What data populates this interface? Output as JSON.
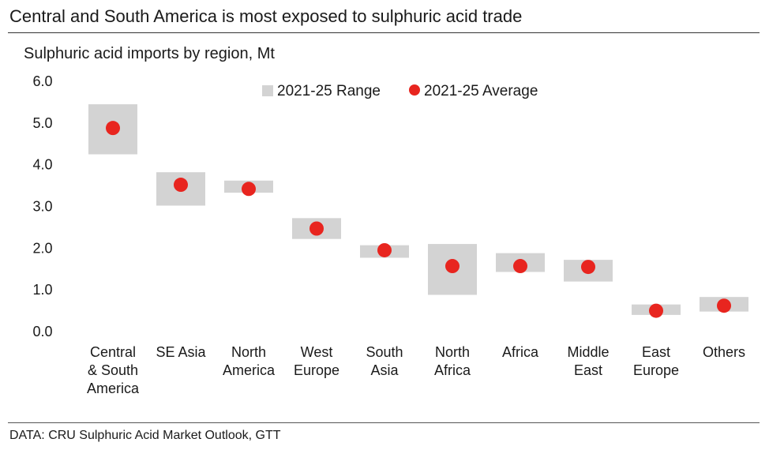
{
  "header": {
    "title": "Central and South America is most exposed to sulphuric acid trade",
    "source": "DATA: CRU Sulphuric Acid Market Outlook, GTT"
  },
  "chart_data": {
    "type": "scatter",
    "title": "Sulphuric acid imports by region, Mt",
    "xlabel": "",
    "ylabel": "",
    "ylim": [
      0,
      6
    ],
    "yticks": [
      "0.0",
      "1.0",
      "2.0",
      "3.0",
      "4.0",
      "5.0",
      "6.0"
    ],
    "grid": false,
    "legend_position": "top",
    "categories": [
      [
        "Central",
        "& South",
        "America"
      ],
      [
        "SE Asia"
      ],
      [
        "North",
        "America"
      ],
      [
        "West",
        "Europe"
      ],
      [
        "South",
        "Asia"
      ],
      [
        "North",
        "Africa"
      ],
      [
        "Africa"
      ],
      [
        "Middle",
        "East"
      ],
      [
        "East",
        "Europe"
      ],
      [
        "Others"
      ]
    ],
    "series": [
      {
        "name": "2021-25 Range",
        "color": "#d3d3d3",
        "ranges": [
          [
            4.25,
            5.45
          ],
          [
            3.02,
            3.82
          ],
          [
            3.33,
            3.62
          ],
          [
            2.22,
            2.72
          ],
          [
            1.77,
            2.07
          ],
          [
            0.88,
            2.1
          ],
          [
            1.43,
            1.88
          ],
          [
            1.2,
            1.72
          ],
          [
            0.4,
            0.65
          ],
          [
            0.48,
            0.83
          ]
        ]
      },
      {
        "name": "2021-25 Average",
        "color": "#e8251f",
        "values": [
          4.88,
          3.52,
          3.42,
          2.47,
          1.95,
          1.57,
          1.57,
          1.55,
          0.5,
          0.62
        ]
      }
    ]
  }
}
